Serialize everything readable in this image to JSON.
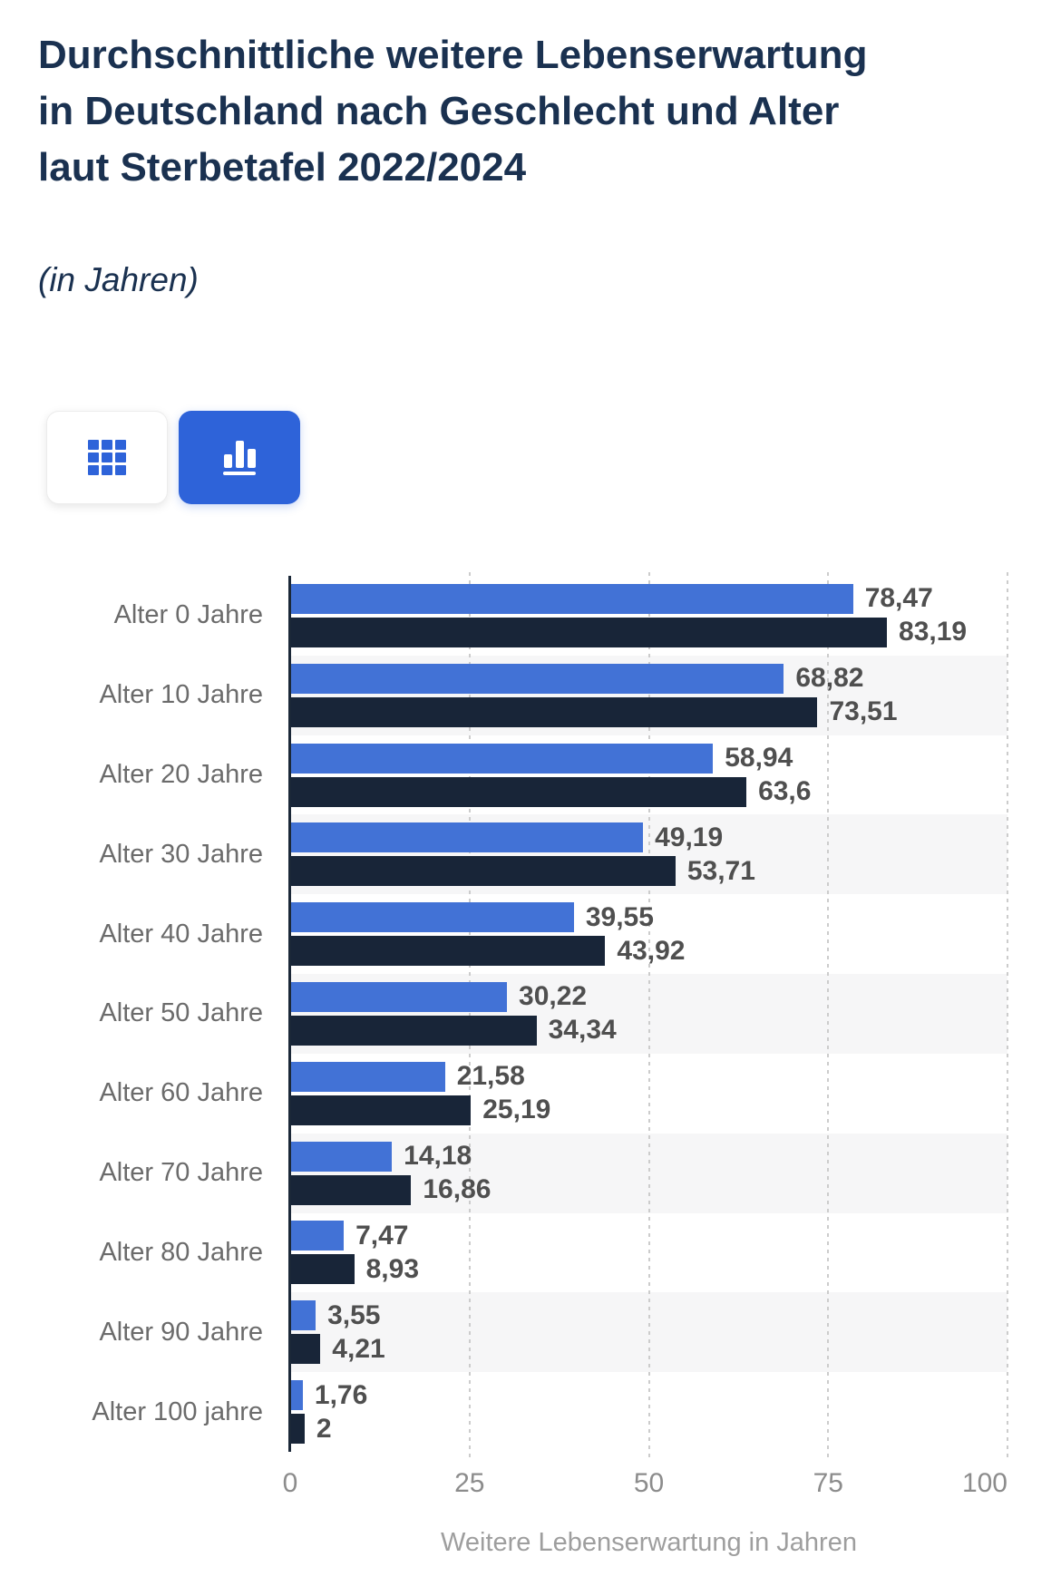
{
  "header": {
    "title": "Durchschnittliche weitere Lebenserwartung in Deutschland nach Geschlecht und Alter laut Sterbetafel 2022/2024",
    "subtitle": "(in Jahren)"
  },
  "toolbar": {
    "buttons": [
      {
        "name": "table-view",
        "icon": "grid-icon",
        "selected": false
      },
      {
        "name": "chart-view",
        "icon": "bar-chart-icon",
        "selected": true
      }
    ],
    "accent_color": "#2e63d9"
  },
  "chart_data": {
    "type": "bar",
    "orientation": "horizontal",
    "title": "Durchschnittliche weitere Lebenserwartung in Deutschland nach Geschlecht und Alter laut Sterbetafel 2022/2024",
    "xlabel": "Weitere Lebenserwartung in Jahren",
    "xlim": [
      0,
      100
    ],
    "grid": "vertical-dashed",
    "legend": "none",
    "categories": [
      "Alter 0 Jahre",
      "Alter 10 Jahre",
      "Alter 20 Jahre",
      "Alter 30 Jahre",
      "Alter 40 Jahre",
      "Alter 50 Jahre",
      "Alter 60 Jahre",
      "Alter 70 Jahre",
      "Alter 80 Jahre",
      "Alter 90 Jahre",
      "Alter 100 jahre"
    ],
    "series": [
      {
        "id": "series-1",
        "color": "#4272d6",
        "values": [
          78.47,
          68.82,
          58.94,
          49.19,
          39.55,
          30.22,
          21.58,
          14.18,
          7.47,
          3.55,
          1.76
        ],
        "labels": [
          "78,47",
          "68,82",
          "58,94",
          "49,19",
          "39,55",
          "30,22",
          "21,58",
          "14,18",
          "7,47",
          "3,55",
          "1,76"
        ]
      },
      {
        "id": "series-2",
        "color": "#182538",
        "values": [
          83.19,
          73.51,
          63.6,
          53.71,
          43.92,
          34.34,
          25.19,
          16.86,
          8.93,
          4.21,
          2
        ],
        "labels": [
          "83,19",
          "73,51",
          "63,6",
          "53,71",
          "43,92",
          "34,34",
          "25,19",
          "16,86",
          "8,93",
          "4,21",
          "2"
        ]
      }
    ],
    "xticks": [
      {
        "value": 0,
        "label": "0"
      },
      {
        "value": 25,
        "label": "25"
      },
      {
        "value": 50,
        "label": "50"
      },
      {
        "value": 75,
        "label": "75"
      },
      {
        "value": 100,
        "label": "100"
      }
    ],
    "style": {
      "band_color": "#f6f6f7",
      "gridline_color": "#cccccc",
      "axis_line_color": "#1b2838",
      "category_label_color": "#6b6b6b",
      "value_label_color": "#4f4f4f",
      "tick_label_color": "#8c8c8c",
      "axis_title_color": "#9e9e9e"
    }
  }
}
